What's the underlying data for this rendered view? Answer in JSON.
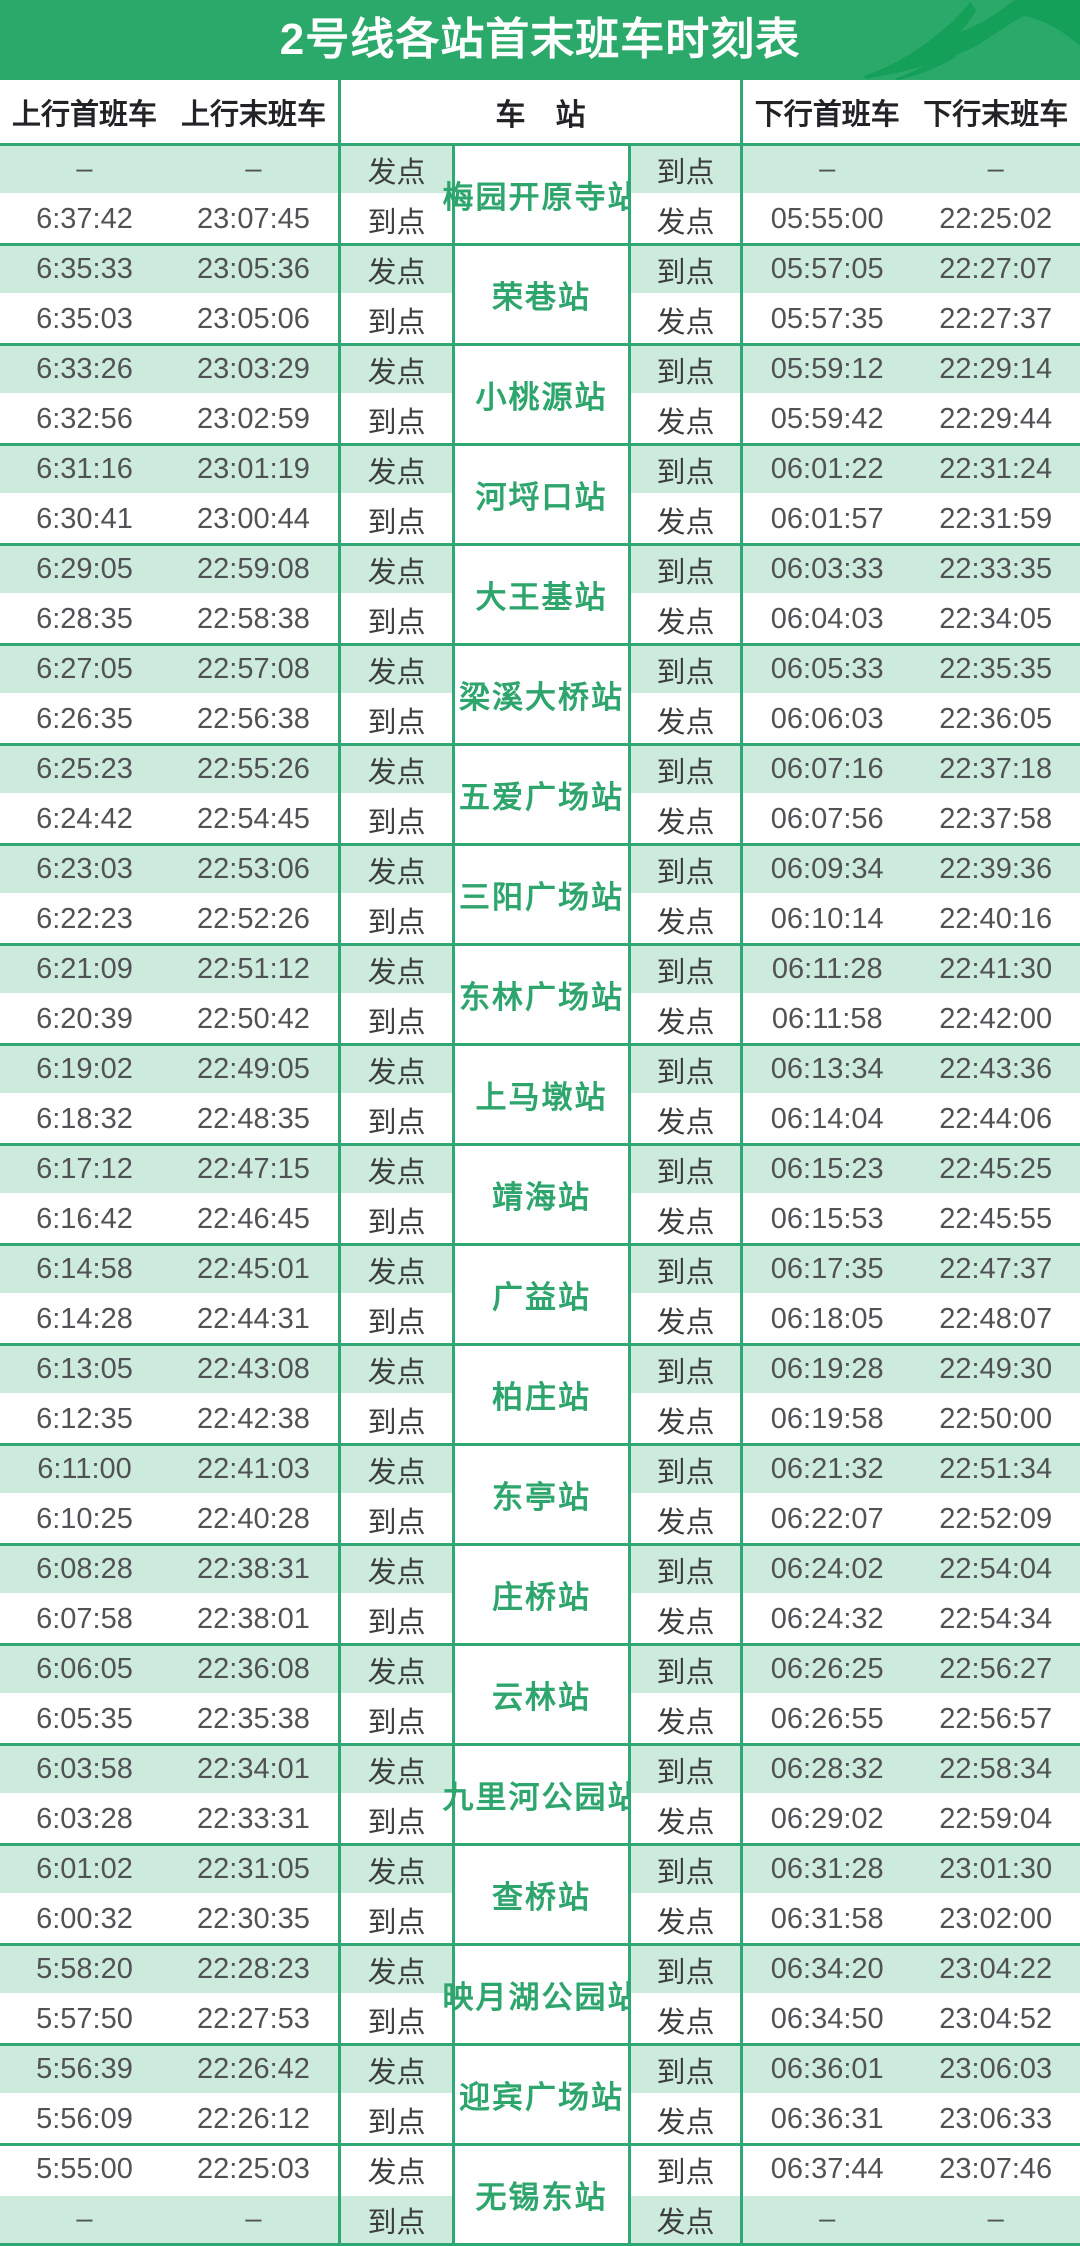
{
  "header": {
    "title": "2号线各站首末班车时刻表",
    "logo": "metro-swoosh-logo"
  },
  "columns": {
    "up_first": "上行首班车",
    "up_last": "上行末班车",
    "station": "车　站",
    "down_first": "下行首班车",
    "down_last": "下行末班车"
  },
  "colors": {
    "banner_green": "#2BA96A",
    "grid_green": "#2FA873",
    "row_tint": "#CDEBDC",
    "station_text_green": "#2EA56C",
    "logo_dark_green": "#14A058"
  },
  "stations": [
    {
      "name": "梅园开原寺站",
      "shaded_row": 0,
      "rows": [
        {
          "left_label": "发点",
          "up_first": "–",
          "up_last": "–",
          "right_label": "到点",
          "down_first": "–",
          "down_last": "–"
        },
        {
          "left_label": "到点",
          "up_first": "6:37:42",
          "up_last": "23:07:45",
          "right_label": "发点",
          "down_first": "05:55:00",
          "down_last": "22:25:02"
        }
      ]
    },
    {
      "name": "荣巷站",
      "shaded_row": 0,
      "rows": [
        {
          "left_label": "发点",
          "up_first": "6:35:33",
          "up_last": "23:05:36",
          "right_label": "到点",
          "down_first": "05:57:05",
          "down_last": "22:27:07"
        },
        {
          "left_label": "到点",
          "up_first": "6:35:03",
          "up_last": "23:05:06",
          "right_label": "发点",
          "down_first": "05:57:35",
          "down_last": "22:27:37"
        }
      ]
    },
    {
      "name": "小桃源站",
      "shaded_row": 0,
      "rows": [
        {
          "left_label": "发点",
          "up_first": "6:33:26",
          "up_last": "23:03:29",
          "right_label": "到点",
          "down_first": "05:59:12",
          "down_last": "22:29:14"
        },
        {
          "left_label": "到点",
          "up_first": "6:32:56",
          "up_last": "23:02:59",
          "right_label": "发点",
          "down_first": "05:59:42",
          "down_last": "22:29:44"
        }
      ]
    },
    {
      "name": "河埒口站",
      "shaded_row": 0,
      "rows": [
        {
          "left_label": "发点",
          "up_first": "6:31:16",
          "up_last": "23:01:19",
          "right_label": "到点",
          "down_first": "06:01:22",
          "down_last": "22:31:24"
        },
        {
          "left_label": "到点",
          "up_first": "6:30:41",
          "up_last": "23:00:44",
          "right_label": "发点",
          "down_first": "06:01:57",
          "down_last": "22:31:59"
        }
      ]
    },
    {
      "name": "大王基站",
      "shaded_row": 0,
      "rows": [
        {
          "left_label": "发点",
          "up_first": "6:29:05",
          "up_last": "22:59:08",
          "right_label": "到点",
          "down_first": "06:03:33",
          "down_last": "22:33:35"
        },
        {
          "left_label": "到点",
          "up_first": "6:28:35",
          "up_last": "22:58:38",
          "right_label": "发点",
          "down_first": "06:04:03",
          "down_last": "22:34:05"
        }
      ]
    },
    {
      "name": "梁溪大桥站",
      "shaded_row": 0,
      "rows": [
        {
          "left_label": "发点",
          "up_first": "6:27:05",
          "up_last": "22:57:08",
          "right_label": "到点",
          "down_first": "06:05:33",
          "down_last": "22:35:35"
        },
        {
          "left_label": "到点",
          "up_first": "6:26:35",
          "up_last": "22:56:38",
          "right_label": "发点",
          "down_first": "06:06:03",
          "down_last": "22:36:05"
        }
      ]
    },
    {
      "name": "五爱广场站",
      "shaded_row": 0,
      "rows": [
        {
          "left_label": "发点",
          "up_first": "6:25:23",
          "up_last": "22:55:26",
          "right_label": "到点",
          "down_first": "06:07:16",
          "down_last": "22:37:18"
        },
        {
          "left_label": "到点",
          "up_first": "6:24:42",
          "up_last": "22:54:45",
          "right_label": "发点",
          "down_first": "06:07:56",
          "down_last": "22:37:58"
        }
      ]
    },
    {
      "name": "三阳广场站",
      "shaded_row": 0,
      "rows": [
        {
          "left_label": "发点",
          "up_first": "6:23:03",
          "up_last": "22:53:06",
          "right_label": "到点",
          "down_first": "06:09:34",
          "down_last": "22:39:36"
        },
        {
          "left_label": "到点",
          "up_first": "6:22:23",
          "up_last": "22:52:26",
          "right_label": "发点",
          "down_first": "06:10:14",
          "down_last": "22:40:16"
        }
      ]
    },
    {
      "name": "东林广场站",
      "shaded_row": 0,
      "rows": [
        {
          "left_label": "发点",
          "up_first": "6:21:09",
          "up_last": "22:51:12",
          "right_label": "到点",
          "down_first": "06:11:28",
          "down_last": "22:41:30"
        },
        {
          "left_label": "到点",
          "up_first": "6:20:39",
          "up_last": "22:50:42",
          "right_label": "发点",
          "down_first": "06:11:58",
          "down_last": "22:42:00"
        }
      ]
    },
    {
      "name": "上马墩站",
      "shaded_row": 0,
      "rows": [
        {
          "left_label": "发点",
          "up_first": "6:19:02",
          "up_last": "22:49:05",
          "right_label": "到点",
          "down_first": "06:13:34",
          "down_last": "22:43:36"
        },
        {
          "left_label": "到点",
          "up_first": "6:18:32",
          "up_last": "22:48:35",
          "right_label": "发点",
          "down_first": "06:14:04",
          "down_last": "22:44:06"
        }
      ]
    },
    {
      "name": "靖海站",
      "shaded_row": 0,
      "rows": [
        {
          "left_label": "发点",
          "up_first": "6:17:12",
          "up_last": "22:47:15",
          "right_label": "到点",
          "down_first": "06:15:23",
          "down_last": "22:45:25"
        },
        {
          "left_label": "到点",
          "up_first": "6:16:42",
          "up_last": "22:46:45",
          "right_label": "发点",
          "down_first": "06:15:53",
          "down_last": "22:45:55"
        }
      ]
    },
    {
      "name": "广益站",
      "shaded_row": 0,
      "rows": [
        {
          "left_label": "发点",
          "up_first": "6:14:58",
          "up_last": "22:45:01",
          "right_label": "到点",
          "down_first": "06:17:35",
          "down_last": "22:47:37"
        },
        {
          "left_label": "到点",
          "up_first": "6:14:28",
          "up_last": "22:44:31",
          "right_label": "发点",
          "down_first": "06:18:05",
          "down_last": "22:48:07"
        }
      ]
    },
    {
      "name": "柏庄站",
      "shaded_row": 0,
      "rows": [
        {
          "left_label": "发点",
          "up_first": "6:13:05",
          "up_last": "22:43:08",
          "right_label": "到点",
          "down_first": "06:19:28",
          "down_last": "22:49:30"
        },
        {
          "left_label": "到点",
          "up_first": "6:12:35",
          "up_last": "22:42:38",
          "right_label": "发点",
          "down_first": "06:19:58",
          "down_last": "22:50:00"
        }
      ]
    },
    {
      "name": "东亭站",
      "shaded_row": 0,
      "rows": [
        {
          "left_label": "发点",
          "up_first": "6:11:00",
          "up_last": "22:41:03",
          "right_label": "到点",
          "down_first": "06:21:32",
          "down_last": "22:51:34"
        },
        {
          "left_label": "到点",
          "up_first": "6:10:25",
          "up_last": "22:40:28",
          "right_label": "发点",
          "down_first": "06:22:07",
          "down_last": "22:52:09"
        }
      ]
    },
    {
      "name": "庄桥站",
      "shaded_row": 0,
      "rows": [
        {
          "left_label": "发点",
          "up_first": "6:08:28",
          "up_last": "22:38:31",
          "right_label": "到点",
          "down_first": "06:24:02",
          "down_last": "22:54:04"
        },
        {
          "left_label": "到点",
          "up_first": "6:07:58",
          "up_last": "22:38:01",
          "right_label": "发点",
          "down_first": "06:24:32",
          "down_last": "22:54:34"
        }
      ]
    },
    {
      "name": "云林站",
      "shaded_row": 0,
      "rows": [
        {
          "left_label": "发点",
          "up_first": "6:06:05",
          "up_last": "22:36:08",
          "right_label": "到点",
          "down_first": "06:26:25",
          "down_last": "22:56:27"
        },
        {
          "left_label": "到点",
          "up_first": "6:05:35",
          "up_last": "22:35:38",
          "right_label": "发点",
          "down_first": "06:26:55",
          "down_last": "22:56:57"
        }
      ]
    },
    {
      "name": "九里河公园站",
      "shaded_row": 0,
      "rows": [
        {
          "left_label": "发点",
          "up_first": "6:03:58",
          "up_last": "22:34:01",
          "right_label": "到点",
          "down_first": "06:28:32",
          "down_last": "22:58:34"
        },
        {
          "left_label": "到点",
          "up_first": "6:03:28",
          "up_last": "22:33:31",
          "right_label": "发点",
          "down_first": "06:29:02",
          "down_last": "22:59:04"
        }
      ]
    },
    {
      "name": "查桥站",
      "shaded_row": 0,
      "rows": [
        {
          "left_label": "发点",
          "up_first": "6:01:02",
          "up_last": "22:31:05",
          "right_label": "到点",
          "down_first": "06:31:28",
          "down_last": "23:01:30"
        },
        {
          "left_label": "到点",
          "up_first": "6:00:32",
          "up_last": "22:30:35",
          "right_label": "发点",
          "down_first": "06:31:58",
          "down_last": "23:02:00"
        }
      ]
    },
    {
      "name": "映月湖公园站",
      "shaded_row": 0,
      "rows": [
        {
          "left_label": "发点",
          "up_first": "5:58:20",
          "up_last": "22:28:23",
          "right_label": "到点",
          "down_first": "06:34:20",
          "down_last": "23:04:22"
        },
        {
          "left_label": "到点",
          "up_first": "5:57:50",
          "up_last": "22:27:53",
          "right_label": "发点",
          "down_first": "06:34:50",
          "down_last": "23:04:52"
        }
      ]
    },
    {
      "name": "迎宾广场站",
      "shaded_row": 0,
      "rows": [
        {
          "left_label": "发点",
          "up_first": "5:56:39",
          "up_last": "22:26:42",
          "right_label": "到点",
          "down_first": "06:36:01",
          "down_last": "23:06:03"
        },
        {
          "left_label": "到点",
          "up_first": "5:56:09",
          "up_last": "22:26:12",
          "right_label": "发点",
          "down_first": "06:36:31",
          "down_last": "23:06:33"
        }
      ]
    },
    {
      "name": "无锡东站",
      "shaded_row": 1,
      "rows": [
        {
          "left_label": "发点",
          "up_first": "5:55:00",
          "up_last": "22:25:03",
          "right_label": "到点",
          "down_first": "06:37:44",
          "down_last": "23:07:46"
        },
        {
          "left_label": "到点",
          "up_first": "–",
          "up_last": "–",
          "right_label": "发点",
          "down_first": "–",
          "down_last": "–"
        }
      ]
    }
  ]
}
